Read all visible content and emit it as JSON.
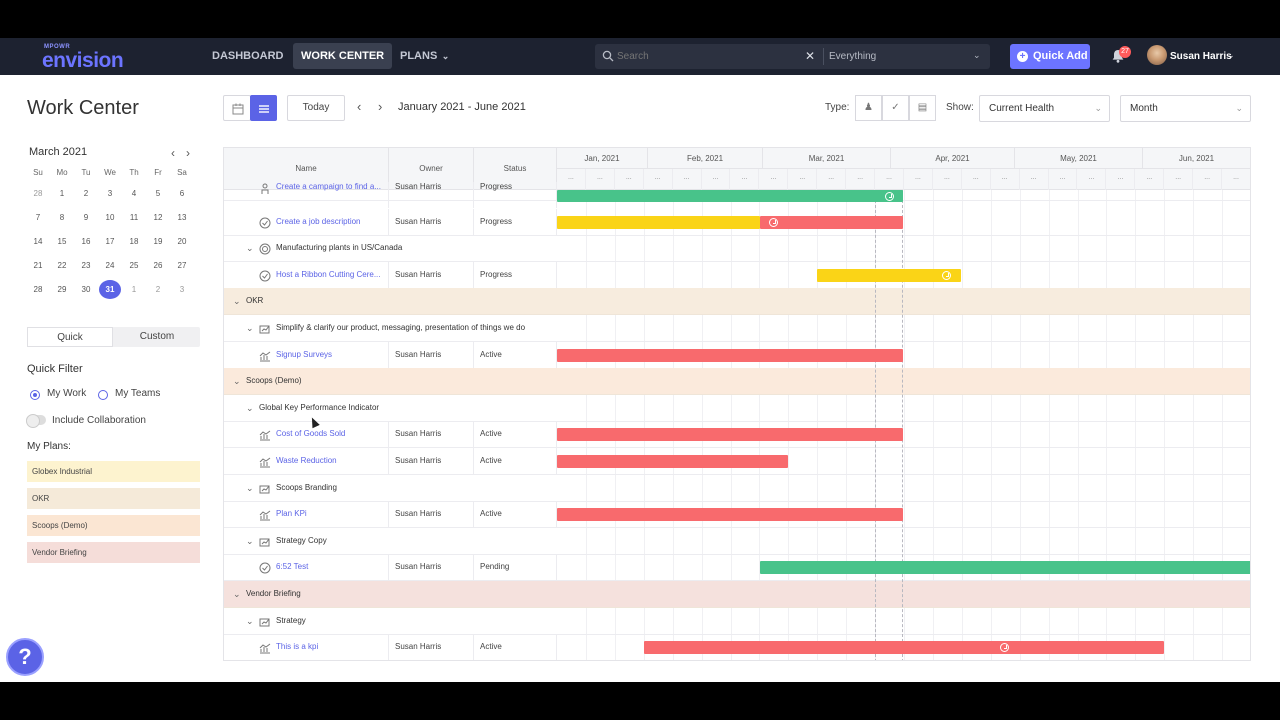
{
  "nav": {
    "logo_small": "MPOWR",
    "logo_big": "envision",
    "items": [
      "DASHBOARD",
      "WORK CENTER",
      "PLANS"
    ],
    "active": "WORK CENTER",
    "search_placeholder": "Search",
    "search_scope": "Everything",
    "quick_add": "Quick Add",
    "notifications": "27",
    "user": "Susan Harris"
  },
  "left": {
    "page_title": "Work Center",
    "calendar_month": "March 2021",
    "dow": [
      "Su",
      "Mo",
      "Tu",
      "We",
      "Th",
      "Fr",
      "Sa"
    ],
    "weeks": [
      [
        "28",
        "1",
        "2",
        "3",
        "4",
        "5",
        "6"
      ],
      [
        "7",
        "8",
        "9",
        "10",
        "11",
        "12",
        "13"
      ],
      [
        "14",
        "15",
        "16",
        "17",
        "18",
        "19",
        "20"
      ],
      [
        "21",
        "22",
        "23",
        "24",
        "25",
        "26",
        "27"
      ],
      [
        "28",
        "29",
        "30",
        "31",
        "1",
        "2",
        "3"
      ]
    ],
    "selected_day": "31",
    "seg_quick": "Quick",
    "seg_custom": "Custom",
    "quick_filter": "Quick Filter",
    "my_work": "My Work",
    "my_teams": "My Teams",
    "include_collab": "Include Collaboration",
    "my_plans": "My Plans:",
    "plans": [
      {
        "name": "Globex Industrial",
        "color": "#fdf3cf"
      },
      {
        "name": "OKR",
        "color": "#f5ead9"
      },
      {
        "name": "Scoops (Demo)",
        "color": "#fbe6d3"
      },
      {
        "name": "Vendor Briefing",
        "color": "#f5ddd9"
      }
    ],
    "help": "?"
  },
  "toolbar": {
    "today": "Today",
    "range": "January 2021 - June 2021",
    "type_label": "Type:",
    "show_label": "Show:",
    "show_value": "Current Health",
    "scale_value": "Month"
  },
  "grid": {
    "col_name": "Name",
    "col_owner": "Owner",
    "col_status": "Status",
    "months": [
      "Jan, 2021",
      "Feb, 2021",
      "Mar, 2021",
      "Apr, 2021",
      "May, 2021",
      "Jun, 2021"
    ],
    "week_mark": "...",
    "colors": {
      "green": "#48c38a",
      "yellow": "#fad417",
      "red": "#f86a6d",
      "okr": "#f7ecde",
      "scoops": "#fbeadc",
      "vendor": "#f5e1dd"
    },
    "rows": [
      {
        "name": "Create a campaign to find a...",
        "owner": "Susan Harris",
        "status": "Progress",
        "kind": "task",
        "icon": "person-icon"
      },
      {
        "name": "Create a job description",
        "owner": "Susan Harris",
        "status": "Progress",
        "kind": "task",
        "icon": "check-circle-icon"
      },
      {
        "name": "Manufacturing plants in US/Canada",
        "kind": "sub",
        "icon": "target-icon"
      },
      {
        "name": "Host a Ribbon Cutting Cere...",
        "owner": "Susan Harris",
        "status": "Progress",
        "kind": "task",
        "icon": "check-circle-icon"
      },
      {
        "name": "OKR",
        "kind": "group",
        "color": "okr"
      },
      {
        "name": "Simplify & clarify our product, messaging, presentation of things we do",
        "kind": "sub",
        "icon": "objective-icon"
      },
      {
        "name": "Signup Surveys",
        "owner": "Susan Harris",
        "status": "Active",
        "kind": "task",
        "icon": "kpi-chart-icon"
      },
      {
        "name": "Scoops (Demo)",
        "kind": "group",
        "color": "scoops"
      },
      {
        "name": "Global Key Performance Indicator",
        "kind": "sub",
        "icon": ""
      },
      {
        "name": "Cost of Goods Sold",
        "owner": "Susan Harris",
        "status": "Active",
        "kind": "task",
        "icon": "kpi-chart-icon"
      },
      {
        "name": "Waste Reduction",
        "owner": "Susan Harris",
        "status": "Active",
        "kind": "task",
        "icon": "kpi-chart-icon"
      },
      {
        "name": "Scoops Branding",
        "kind": "sub",
        "icon": "objective-icon"
      },
      {
        "name": "Plan KPi",
        "owner": "Susan Harris",
        "status": "Active",
        "kind": "task",
        "icon": "kpi-chart-icon"
      },
      {
        "name": "Strategy Copy",
        "kind": "sub",
        "icon": "objective-icon"
      },
      {
        "name": "6:52 Test",
        "owner": "Susan Harris",
        "status": "Pending",
        "kind": "task",
        "icon": "check-circle-icon"
      },
      {
        "name": "Vendor Briefing",
        "kind": "group",
        "color": "vendor"
      },
      {
        "name": "Strategy",
        "kind": "sub",
        "icon": "objective-icon"
      },
      {
        "name": "This is a kpi",
        "owner": "Susan Harris",
        "status": "Active",
        "kind": "task",
        "icon": "kpi-chart-icon"
      }
    ]
  }
}
